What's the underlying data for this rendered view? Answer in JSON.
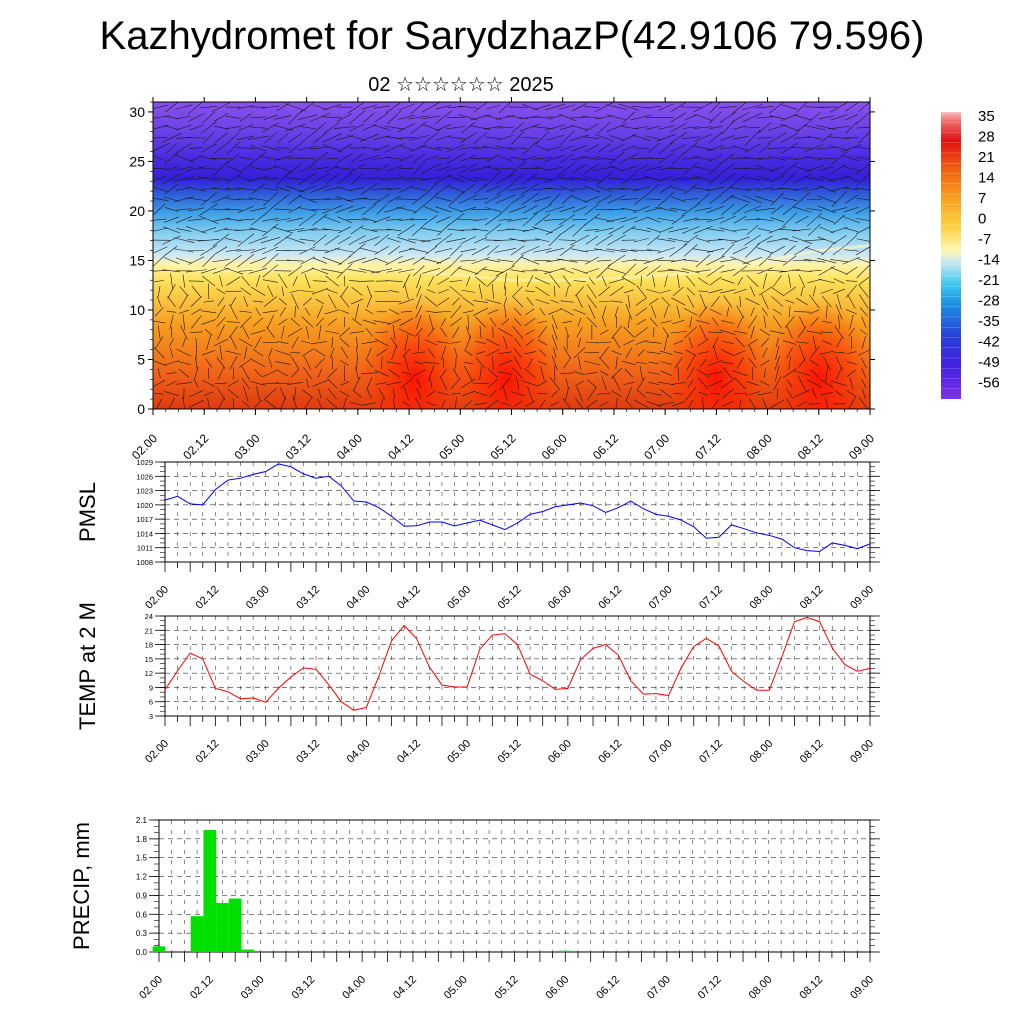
{
  "title": "Kazhydromet for SarydzhazP(42.9106 79.596)",
  "subtitle": "02 ☆☆☆☆☆☆ 2025",
  "time_labels": [
    "02.00",
    "02.12",
    "03.00",
    "03.12",
    "04.00",
    "04.12",
    "05.00",
    "05.12",
    "06.00",
    "06.12",
    "07.00",
    "07.12",
    "08.00",
    "08.12",
    "09.00"
  ],
  "chart_data": [
    {
      "type": "heatmap",
      "name": "",
      "yticks": [
        0,
        5,
        10,
        15,
        20,
        25,
        30
      ],
      "ylim": [
        0,
        31
      ],
      "xlim": [
        0,
        7
      ],
      "colorbar": {
        "labels": [
          "35",
          "28",
          "21",
          "14",
          "7",
          "0",
          "-7",
          "-14",
          "-21",
          "-28",
          "-35",
          "-42",
          "-49",
          "-56"
        ],
        "range": [
          -63,
          35
        ]
      },
      "freezing_level_profile": [
        [
          0,
          15
        ],
        [
          0.25,
          14.5
        ],
        [
          0.5,
          14
        ],
        [
          1,
          14
        ],
        [
          1.5,
          14.3
        ],
        [
          2,
          14.2
        ],
        [
          2.5,
          14
        ],
        [
          3,
          13.5
        ],
        [
          3.5,
          13
        ],
        [
          4,
          13
        ],
        [
          4.5,
          13.2
        ],
        [
          5,
          13.5
        ],
        [
          5.5,
          14
        ],
        [
          6,
          15
        ],
        [
          6.5,
          16
        ],
        [
          7,
          16.5
        ]
      ],
      "warm_cores": [
        {
          "x": 2.55,
          "y": 3
        },
        {
          "x": 3.45,
          "y": 3
        },
        {
          "x": 5.5,
          "y": 3
        },
        {
          "x": 6.5,
          "y": 3
        }
      ]
    },
    {
      "type": "line",
      "ylabel": "PMSL",
      "ylim": [
        1008,
        1029
      ],
      "yticks": [
        "1008",
        "1011",
        "1014",
        "1017",
        "1020",
        "1023",
        "1026",
        "1029"
      ],
      "color": "#0000ff",
      "series": [
        {
          "x": [
            0.0,
            0.125,
            0.25,
            0.375,
            0.5,
            0.625,
            0.75,
            0.875,
            1.0,
            1.125,
            1.25,
            1.375,
            1.5,
            1.625,
            1.75,
            1.875,
            2.0,
            2.125,
            2.25,
            2.375,
            2.5,
            2.625,
            2.75,
            2.875,
            3.0,
            3.125,
            3.25,
            3.375,
            3.5,
            3.625,
            3.75,
            3.875,
            4.0,
            4.125,
            4.25,
            4.375,
            4.5,
            4.625,
            4.75,
            4.875,
            5.0,
            5.125,
            5.25,
            5.375,
            5.5,
            5.625,
            5.75,
            5.875,
            6.0,
            6.125,
            6.25,
            6.375,
            6.5,
            6.625,
            6.75,
            6.875,
            7.0
          ],
          "values": [
            1021,
            1021.8,
            1020.2,
            1020,
            1023.2,
            1025.2,
            1025.6,
            1026.4,
            1027,
            1028.6,
            1028,
            1026.5,
            1025.6,
            1026,
            1024,
            1020.8,
            1020.6,
            1019.4,
            1017.6,
            1015.5,
            1015.6,
            1016.4,
            1016.4,
            1015.6,
            1016.2,
            1016.8,
            1015.8,
            1014.8,
            1016.2,
            1018,
            1018.6,
            1019.6,
            1020,
            1020.4,
            1019.8,
            1018.4,
            1019.4,
            1020.8,
            1019.2,
            1018,
            1017.6,
            1016.8,
            1015.4,
            1013,
            1013.2,
            1015.8,
            1015,
            1014.1,
            1013.6,
            1012.8,
            1011,
            1010.4,
            1010.2,
            1012,
            1011.5,
            1010.8,
            1011.8
          ]
        }
      ]
    },
    {
      "type": "line",
      "ylabel": "TEMP at 2 M",
      "ylim": [
        3,
        24
      ],
      "yticks": [
        "3",
        "6",
        "9",
        "12",
        "15",
        "18",
        "21",
        "24"
      ],
      "color": "#ff0000",
      "series": [
        {
          "x": [
            0.0,
            0.125,
            0.25,
            0.375,
            0.5,
            0.625,
            0.75,
            0.875,
            1.0,
            1.125,
            1.25,
            1.375,
            1.5,
            1.625,
            1.75,
            1.875,
            2.0,
            2.125,
            2.25,
            2.375,
            2.5,
            2.625,
            2.75,
            2.875,
            3.0,
            3.125,
            3.25,
            3.375,
            3.5,
            3.625,
            3.75,
            3.875,
            4.0,
            4.125,
            4.25,
            4.375,
            4.5,
            4.625,
            4.75,
            4.875,
            5.0,
            5.125,
            5.25,
            5.375,
            5.5,
            5.625,
            5.75,
            5.875,
            6.0,
            6.125,
            6.25,
            6.375,
            6.5,
            6.625,
            6.75,
            6.875,
            7.0
          ],
          "values": [
            8.5,
            12.5,
            16.2,
            15,
            8.8,
            8.1,
            6.6,
            6.8,
            5.9,
            8.8,
            11.2,
            13.1,
            12.8,
            9.6,
            6,
            4.2,
            4.8,
            11.5,
            18.8,
            22,
            19.2,
            13.3,
            9.5,
            9.1,
            9.1,
            17,
            20,
            20.3,
            18,
            11.8,
            10.4,
            8.6,
            8.8,
            14.8,
            17.2,
            18,
            15.8,
            10.4,
            7.6,
            7.7,
            7.3,
            13.1,
            17.6,
            19.3,
            17.7,
            12.4,
            10.2,
            8.4,
            8.4,
            15.4,
            22.8,
            23.7,
            22.8,
            17.3,
            13.8,
            12.4,
            13
          ]
        }
      ]
    },
    {
      "type": "bar",
      "ylabel": "PRECIP, mm",
      "ylim": [
        0,
        2.1
      ],
      "yticks": [
        "0.0",
        "0.3",
        "0.6",
        "0.9",
        "1.2",
        "1.5",
        "1.8",
        "2.1"
      ],
      "color": "#00e000",
      "bars": [
        {
          "x": 0.0,
          "value": 0.09
        },
        {
          "x": 0.375,
          "value": 0.57
        },
        {
          "x": 0.5,
          "value": 1.94
        },
        {
          "x": 0.625,
          "value": 0.78
        },
        {
          "x": 0.75,
          "value": 0.85
        },
        {
          "x": 0.875,
          "value": 0.04
        },
        {
          "x": 4.0,
          "value": 0.02
        }
      ]
    }
  ]
}
